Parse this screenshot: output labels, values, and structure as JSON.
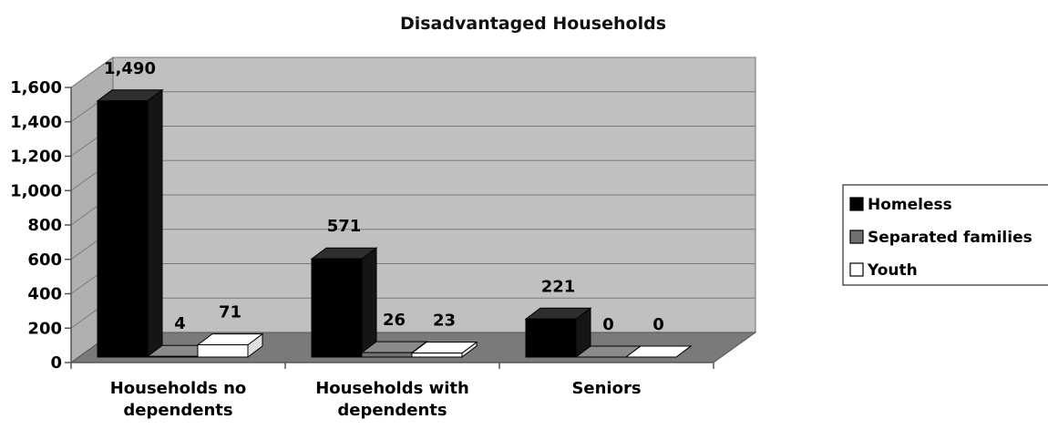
{
  "chart_data": {
    "type": "bar",
    "title": "Disadvantaged Households",
    "xlabel": "",
    "ylabel": "",
    "ylim": [
      0,
      1600
    ],
    "yticks": [
      0,
      200,
      400,
      600,
      800,
      1000,
      1200,
      1400,
      1600
    ],
    "ytick_labels": [
      "0",
      "200",
      "400",
      "600",
      "800",
      "1,000",
      "1,200",
      "1,400",
      "1,600"
    ],
    "categories": [
      [
        "Households no",
        "dependents"
      ],
      [
        "Households with",
        "dependents"
      ],
      [
        "Seniors"
      ]
    ],
    "series": [
      {
        "name": "Homeless",
        "color": "#000000",
        "values": [
          1490,
          571,
          221
        ],
        "labels": [
          "1,490",
          "571",
          "221"
        ]
      },
      {
        "name": "Separated families",
        "color": "#707070",
        "values": [
          4,
          26,
          0
        ],
        "labels": [
          "4",
          "26",
          "0"
        ]
      },
      {
        "name": "Youth",
        "color": "#ffffff",
        "values": [
          71,
          23,
          0
        ],
        "labels": [
          "71",
          "23",
          "0"
        ]
      }
    ],
    "grid": true,
    "legend_position": "right",
    "style": "3d-column"
  }
}
